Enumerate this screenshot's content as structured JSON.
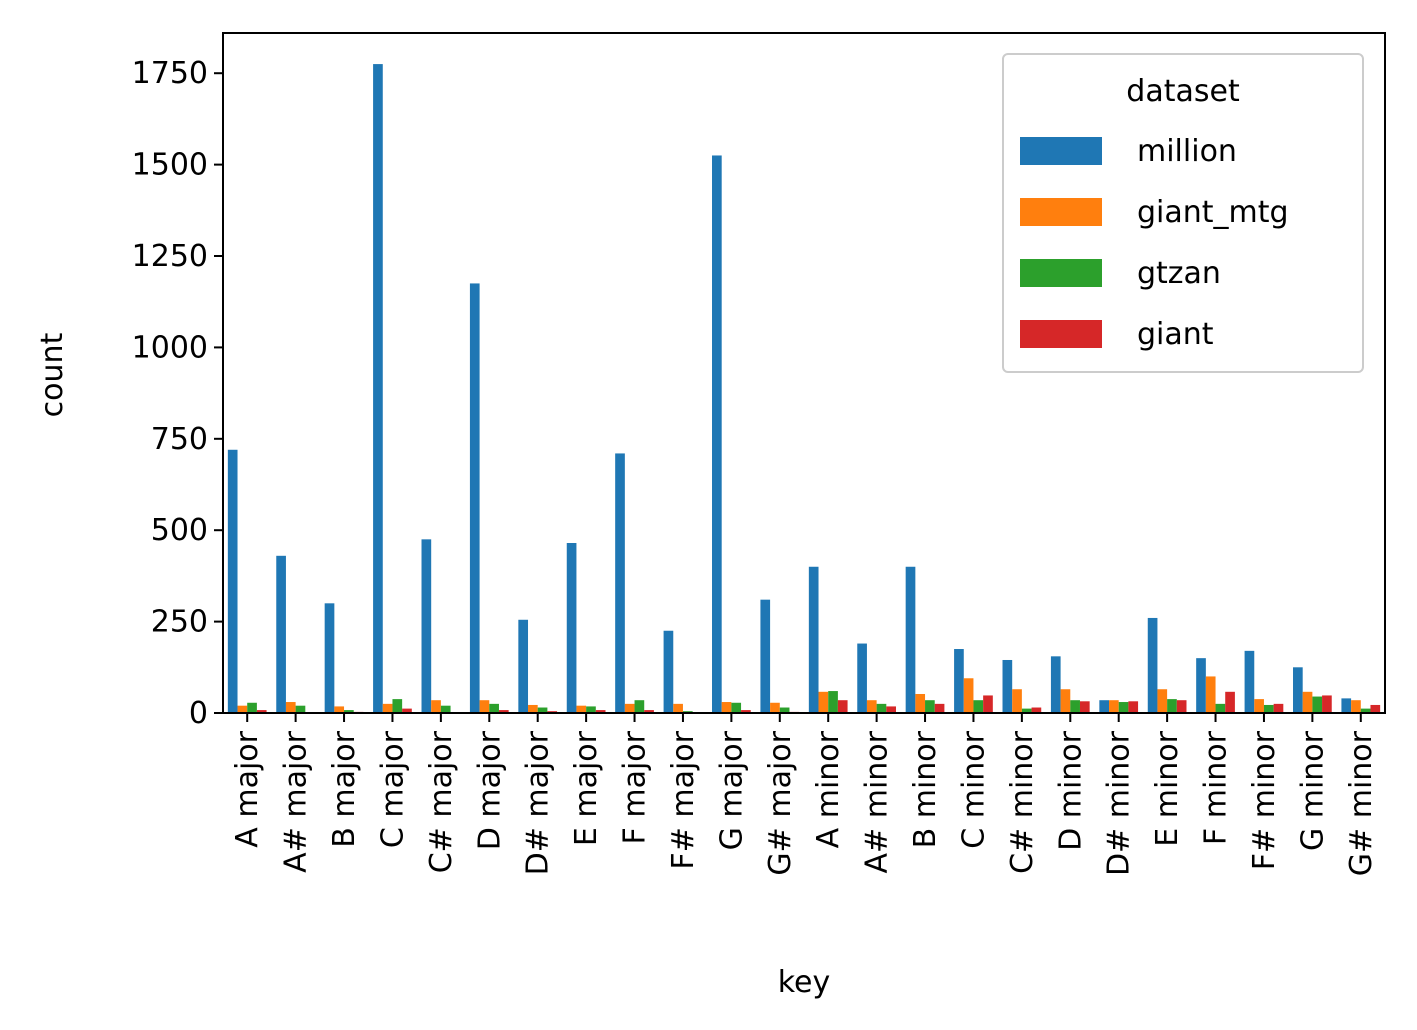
{
  "chart_data": {
    "type": "bar",
    "xlabel": "key",
    "ylabel": "count",
    "ylim": [
      0,
      1860
    ],
    "yticks": [
      0,
      250,
      500,
      750,
      1000,
      1250,
      1500,
      1750
    ],
    "grid": false,
    "legend": {
      "title": "dataset",
      "position": "top-right"
    },
    "categories": [
      "A major",
      "A# major",
      "B major",
      "C major",
      "C# major",
      "D major",
      "D# major",
      "E major",
      "F major",
      "F# major",
      "G major",
      "G# major",
      "A minor",
      "A# minor",
      "B minor",
      "C minor",
      "C# minor",
      "D minor",
      "D# minor",
      "E minor",
      "F minor",
      "F# minor",
      "G minor",
      "G# minor"
    ],
    "series": [
      {
        "name": "million",
        "color": "#1f77b4",
        "values": [
          720,
          430,
          300,
          1775,
          475,
          1175,
          255,
          465,
          710,
          225,
          1525,
          310,
          400,
          190,
          400,
          175,
          145,
          155,
          35,
          260,
          150,
          170,
          125,
          40
        ]
      },
      {
        "name": "giant_mtg",
        "color": "#ff7f0e",
        "values": [
          20,
          30,
          18,
          25,
          35,
          35,
          22,
          20,
          25,
          25,
          30,
          28,
          58,
          35,
          52,
          95,
          65,
          65,
          35,
          65,
          100,
          38,
          58,
          35
        ]
      },
      {
        "name": "gtzan",
        "color": "#2ca02c",
        "values": [
          28,
          20,
          8,
          38,
          20,
          25,
          15,
          18,
          35,
          5,
          28,
          15,
          60,
          25,
          35,
          35,
          12,
          35,
          30,
          38,
          25,
          22,
          45,
          12
        ]
      },
      {
        "name": "giant",
        "color": "#d62728",
        "values": [
          8,
          2,
          3,
          12,
          2,
          8,
          5,
          8,
          8,
          2,
          8,
          3,
          35,
          18,
          25,
          48,
          15,
          32,
          32,
          35,
          58,
          25,
          48,
          22
        ]
      }
    ]
  }
}
